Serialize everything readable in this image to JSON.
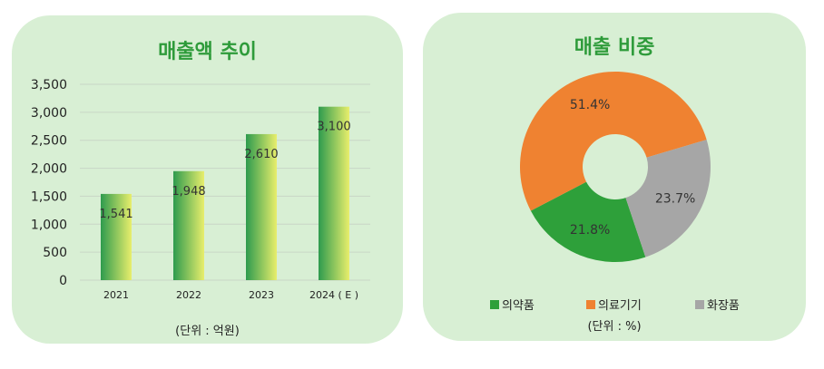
{
  "charts": {
    "left": {
      "title": "매출액 추이",
      "unit_note": "(단위 : 억원)"
    },
    "right": {
      "title": "매출 비중",
      "unit_note": "(단위 : %)"
    }
  },
  "chart_data": [
    {
      "type": "bar",
      "title": "매출액 추이",
      "categories": [
        "2021",
        "2022",
        "2023",
        "2024 ( E )"
      ],
      "values": [
        1541,
        1948,
        2610,
        3100
      ],
      "value_labels": [
        "1,541",
        "1,948",
        "2,610",
        "3,100"
      ],
      "yticks": [
        "0",
        "500",
        "1,000",
        "1,500",
        "2,000",
        "2,500",
        "3,000",
        "3,500"
      ],
      "ylim": [
        0,
        3500
      ],
      "grid": true,
      "bar_gradient": [
        "#2e9b4e",
        "#e8ee6c"
      ],
      "note": "(단위 : 억원)"
    },
    {
      "type": "pie",
      "donut": true,
      "title": "매출 비중",
      "labels": [
        "의약품",
        "의료기기",
        "화장품"
      ],
      "values": [
        21.8,
        51.4,
        23.7
      ],
      "value_labels": [
        "21.8%",
        "51.4%",
        "23.7%"
      ],
      "colors": [
        "#2ea03a",
        "#ef8231",
        "#a6a6a6"
      ],
      "legend_position": "bottom",
      "note": "(단위 : %)"
    }
  ]
}
